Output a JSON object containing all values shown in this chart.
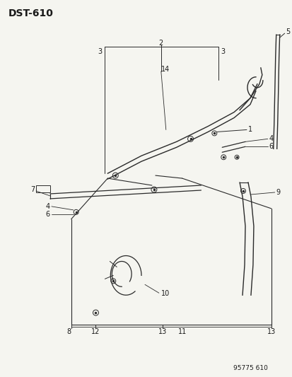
{
  "title": "DST-610",
  "footer": "95775 610",
  "bg_color": "#f5f5f0",
  "line_color": "#2a2a2a",
  "text_color": "#1a1a1a",
  "fig_width": 4.14,
  "fig_height": 5.33,
  "dpi": 100
}
